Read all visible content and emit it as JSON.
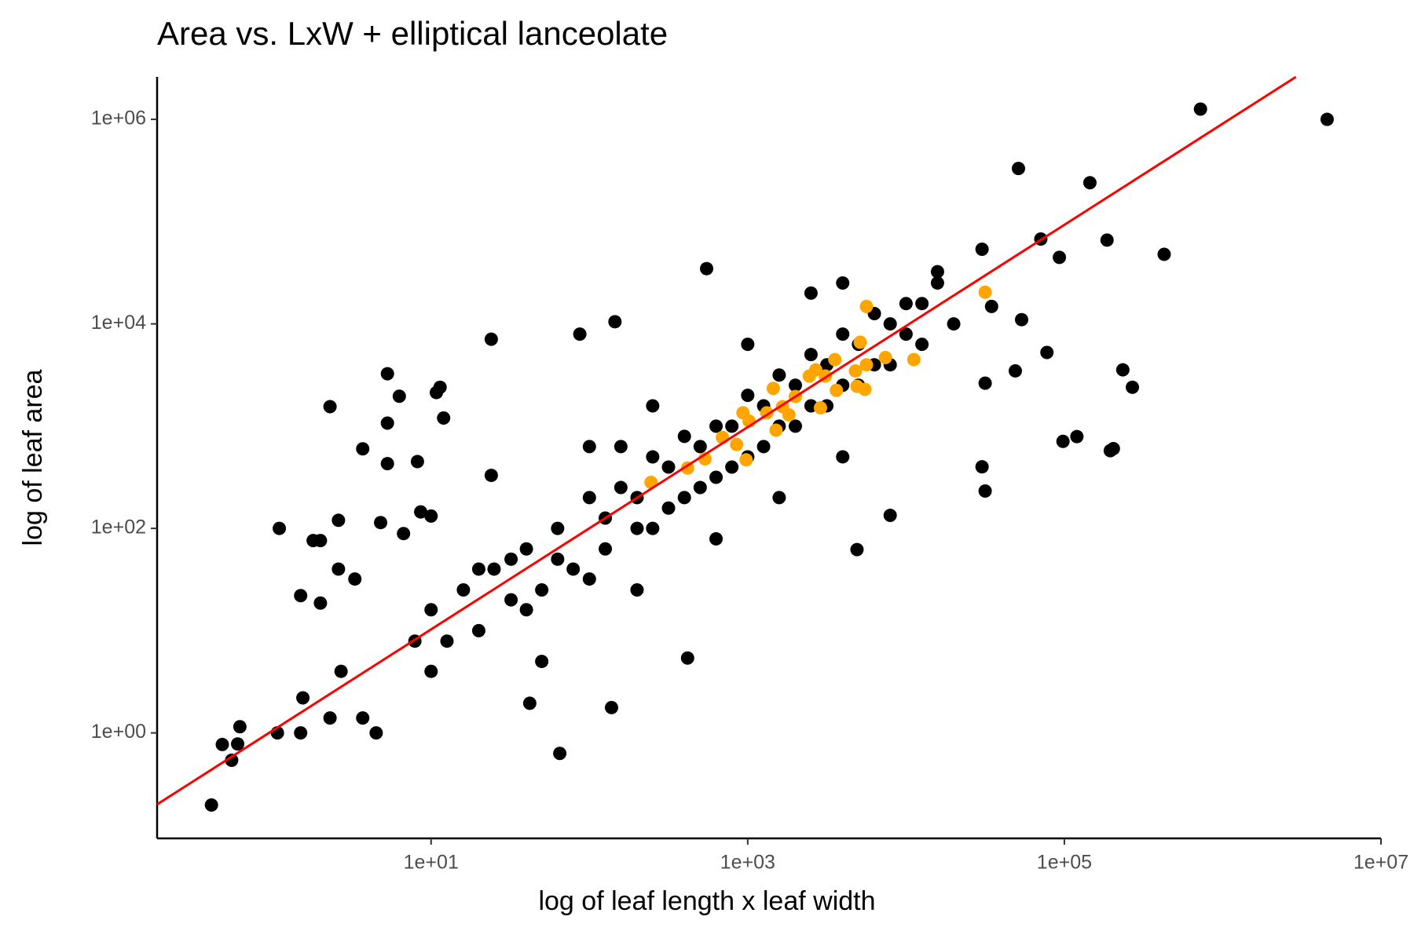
{
  "chart_data": {
    "type": "scatter",
    "title": "Area vs. LxW + elliptical lanceolate",
    "x_label": "log of leaf length x leaf width",
    "y_label": "log of leaf area",
    "xscale": "log",
    "yscale": "log",
    "grid": false,
    "xlim": [
      0.186,
      10000000
    ],
    "ylim": [
      0.093,
      2600000
    ],
    "xticks": [
      {
        "value": 10,
        "label": "1e+01"
      },
      {
        "value": 1000,
        "label": "1e+03"
      },
      {
        "value": 100000,
        "label": "1e+05"
      },
      {
        "value": 10000000,
        "label": "1e+07"
      }
    ],
    "yticks": [
      {
        "value": 1,
        "label": "1e+00"
      },
      {
        "value": 100,
        "label": "1e+02"
      },
      {
        "value": 10000,
        "label": "1e+04"
      },
      {
        "value": 1000000,
        "label": "1e+06"
      }
    ],
    "series": [
      {
        "color": "#000000",
        "x": [
          0.41,
          0.48,
          0.55,
          0.6,
          0.62,
          1.07,
          1.1,
          1.5,
          1.55,
          1.5,
          1.8,
          2,
          2,
          2.3,
          2.3,
          2.6,
          2.6,
          2.7,
          3.3,
          3.7,
          3.7,
          4.5,
          4.8,
          5.3,
          5.3,
          5.3,
          6.3,
          6.7,
          8.2,
          8.6,
          10,
          10.8,
          11.4,
          12,
          24,
          24,
          42,
          65,
          87,
          138,
          145,
          417,
          550,
          4900,
          7940,
          31600,
          30200,
          31600,
          49000,
          51300,
          53700,
          77600,
          71000,
          93000,
          98000,
          120000,
          145000,
          186000,
          195000,
          204000,
          234000,
          269000,
          427000,
          724000,
          4570000,
          30200,
          15800,
          34700,
          7.9,
          10,
          12.6,
          16,
          20,
          25,
          32,
          40,
          50,
          63,
          79,
          100,
          126,
          158,
          200,
          251,
          316,
          398,
          501,
          631,
          794,
          1000,
          1260,
          1580,
          2000,
          2510,
          3160,
          3980,
          5010,
          6310,
          7940,
          10000,
          12600,
          15800,
          20000,
          10,
          20,
          40,
          100,
          158,
          251,
          398,
          631,
          1000,
          1580,
          2510,
          3980,
          6310,
          10000,
          32,
          63,
          126,
          200,
          316,
          501,
          794,
          1260,
          2000,
          3160,
          5010,
          7940,
          12600,
          2510,
          1000,
          251,
          100,
          3980,
          631,
          1580,
          3980,
          50,
          200
        ],
        "y": [
          0.197,
          0.77,
          0.54,
          0.78,
          1.15,
          1,
          100,
          1,
          2.2,
          22,
          76,
          76,
          18.6,
          1550,
          1.4,
          120,
          40,
          4,
          32,
          600,
          1.4,
          1,
          114,
          3250,
          1070,
          430,
          1960,
          89,
          450,
          145,
          132,
          2130,
          2400,
          1200,
          7080,
          330,
          1.95,
          0.63,
          7940,
          1.77,
          10500,
          5.4,
          34700,
          62,
          134,
          232,
          400,
          2630,
          3470,
          331000,
          11000,
          5250,
          67600,
          44700,
          710,
          790,
          240000,
          66000,
          575,
          603,
          3550,
          2400,
          47900,
          1260000,
          1000000,
          53700,
          32400,
          14800,
          7.9,
          16,
          7.9,
          25,
          10,
          40,
          20,
          63,
          25,
          100,
          40,
          200,
          63,
          251,
          100,
          500,
          158,
          794,
          251,
          1000,
          398,
          2000,
          631,
          3160,
          1000,
          5010,
          1580,
          7940,
          2510,
          12600,
          3980,
          15800,
          6310,
          25100,
          10000,
          4,
          40,
          16,
          32,
          631,
          100,
          200,
          316,
          501,
          1000,
          1580,
          2510,
          3980,
          7940,
          50,
          50,
          126,
          200,
          398,
          631,
          1000,
          1580,
          2510,
          3980,
          6310,
          10000,
          15800,
          20000,
          6310,
          1580,
          631,
          25100,
          79,
          200,
          501,
          5,
          25
        ]
      },
      {
        "color": "#ffa500",
        "x": [
          245,
          417,
          537,
          692,
          851,
          977,
          933,
          1020,
          1450,
          1320,
          1510,
          1660,
          1820,
          2000,
          2450,
          2690,
          2880,
          3090,
          3550,
          3630,
          4790,
          5130,
          4900,
          5500,
          5620,
          5620,
          7410,
          11200,
          31600
        ],
        "y": [
          282,
          389,
          479,
          776,
          661,
          468,
          1350,
          1120,
          2340,
          1350,
          912,
          1550,
          1290,
          1950,
          3090,
          3550,
          1510,
          3090,
          4470,
          2240,
          3470,
          6610,
          2450,
          2290,
          3980,
          14800,
          4680,
          4470,
          20400
        ]
      }
    ],
    "fit_line": {
      "color": "#ff0000",
      "x": [
        0.186,
        2900000
      ],
      "y": [
        0.2,
        2600000
      ]
    }
  }
}
